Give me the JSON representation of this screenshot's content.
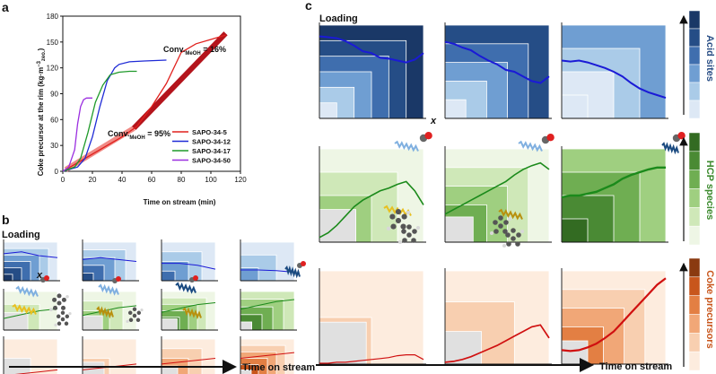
{
  "panels": {
    "a": "a",
    "b": "b",
    "c": "c"
  },
  "chart_data": {
    "type": "line",
    "xlabel": "Time on stream (min)",
    "ylabel": "Coke precursor at the rim (kg·m",
    "ylabel_sup": "−3",
    "ylabel_sub": "zeo.",
    "ylabel_close": ")",
    "xlim": [
      0,
      120
    ],
    "ylim": [
      0,
      180
    ],
    "xticks": [
      0,
      20,
      40,
      60,
      80,
      100,
      120
    ],
    "yticks": [
      0,
      30,
      60,
      90,
      120,
      150,
      180
    ],
    "series": [
      {
        "name": "SAPO-34-5",
        "color": "#e0201d",
        "x": [
          0,
          10,
          20,
          30,
          40,
          50,
          60,
          70,
          80,
          90,
          100,
          110
        ],
        "y": [
          0,
          10,
          20,
          30,
          40,
          52,
          75,
          102,
          138,
          148,
          153,
          158
        ]
      },
      {
        "name": "SAPO-34-12",
        "color": "#1f2bd6",
        "x": [
          0,
          10,
          15,
          20,
          25,
          30,
          35,
          38,
          45,
          55,
          70
        ],
        "y": [
          0,
          5,
          15,
          40,
          75,
          105,
          120,
          124,
          127,
          128,
          129
        ]
      },
      {
        "name": "SAPO-34-17",
        "color": "#1f9a2a",
        "x": [
          0,
          8,
          12,
          17,
          22,
          27,
          32,
          38,
          45,
          50
        ],
        "y": [
          0,
          5,
          15,
          45,
          80,
          100,
          112,
          115,
          116,
          116
        ]
      },
      {
        "name": "SAPO-34-50",
        "color": "#9b2fe0",
        "x": [
          0,
          4,
          8,
          10,
          12,
          14,
          16,
          20
        ],
        "y": [
          0,
          5,
          25,
          55,
          75,
          83,
          85,
          85
        ]
      }
    ],
    "annotations": [
      {
        "pre": "Conv.",
        "sub": "MeOH",
        "post": " = 16%",
        "x": 80,
        "y": 150
      },
      {
        "pre": "Conv.",
        "sub": "MeOH",
        "post": " = 95%",
        "x": 40,
        "y": 52
      }
    ],
    "highlight_segments": [
      {
        "color": "#f08a85",
        "x0": 2,
        "y0": 2,
        "x1": 48,
        "y1": 50
      },
      {
        "color": "#b4141c",
        "x0": 48,
        "y0": 50,
        "x1": 110,
        "y1": 160
      }
    ]
  },
  "panel_b": {
    "loading": "Loading",
    "axis_symbol": "x",
    "time_on_stream": "Time on stream"
  },
  "panel_c": {
    "loading": "Loading",
    "axis_symbol": "x",
    "time_on_stream": "Time on stream",
    "scale_labels": [
      "Acid sites",
      "HCP species",
      "Coke precursors"
    ],
    "scale_colors": [
      "#2a4f86",
      "#3c8a2e",
      "#c8561c"
    ]
  },
  "colors": {
    "blue_shades": [
      "#dde8f5",
      "#aacbe8",
      "#6f9ed2",
      "#3f6eae",
      "#254d86",
      "#1a3867"
    ],
    "green_shades": [
      "#eef6e5",
      "#cfe8b8",
      "#9fcf80",
      "#6fae52",
      "#4a8a34",
      "#336b22"
    ],
    "orange_shades": [
      "#fdecde",
      "#f8cfb0",
      "#f1a777",
      "#e37f43",
      "#c8561c",
      "#8a3a10"
    ],
    "grey_inner": "#e0e0e0",
    "curve_blue": "#1a1ad6",
    "curve_green": "#1b8a1b",
    "curve_red": "#d01010"
  }
}
